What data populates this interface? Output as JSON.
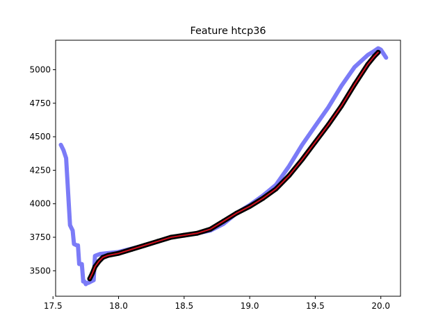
{
  "chart_data": {
    "type": "line",
    "title": "Feature htcp36",
    "xlabel": "",
    "ylabel": "",
    "xlim": [
      17.52,
      20.15
    ],
    "ylim": [
      3310,
      5220
    ],
    "xticks": [
      17.5,
      18.0,
      18.5,
      19.0,
      19.5,
      20.0
    ],
    "xtick_labels": [
      "17.5",
      "18.0",
      "18.5",
      "19.0",
      "19.5",
      "20.0"
    ],
    "yticks": [
      3500,
      3750,
      4000,
      4250,
      4500,
      4750,
      5000
    ],
    "ytick_labels": [
      "3500",
      "3750",
      "4000",
      "4250",
      "4500",
      "4750",
      "5000"
    ],
    "grid": false,
    "series": [
      {
        "color": "#7b7bf7",
        "style": "thick-line",
        "x": [
          17.56,
          17.58,
          17.6,
          17.63,
          17.65,
          17.66,
          17.68,
          17.69,
          17.7,
          17.7,
          17.72,
          17.73,
          17.73,
          17.74,
          17.75,
          17.76,
          17.77,
          17.79,
          17.81,
          17.82,
          17.83,
          17.86,
          17.9,
          17.95,
          18.0,
          18.1,
          18.2,
          18.3,
          18.4,
          18.5,
          18.6,
          18.7,
          18.8,
          18.9,
          19.0,
          19.1,
          19.2,
          19.3,
          19.4,
          19.5,
          19.6,
          19.7,
          19.8,
          19.9,
          19.95,
          19.98,
          20.0,
          20.02,
          20.04
        ],
        "y": [
          4440,
          4400,
          4340,
          3840,
          3800,
          3700,
          3690,
          3690,
          3550,
          3550,
          3550,
          3430,
          3420,
          3420,
          3400,
          3410,
          3410,
          3420,
          3430,
          3610,
          3615,
          3625,
          3630,
          3635,
          3640,
          3665,
          3690,
          3720,
          3750,
          3765,
          3780,
          3800,
          3850,
          3930,
          3990,
          4060,
          4140,
          4280,
          4440,
          4580,
          4720,
          4880,
          5020,
          5110,
          5140,
          5160,
          5150,
          5120,
          5090
        ]
      },
      {
        "color": "#000000",
        "style": "dotted-thick",
        "x": [
          17.78,
          17.8,
          17.82,
          17.85,
          17.88,
          17.92,
          18.0,
          18.1,
          18.2,
          18.3,
          18.4,
          18.5,
          18.6,
          18.7,
          18.8,
          18.9,
          19.0,
          19.1,
          19.2,
          19.3,
          19.4,
          19.5,
          19.6,
          19.7,
          19.8,
          19.9,
          19.95,
          19.98
        ],
        "y": [
          3440,
          3480,
          3530,
          3570,
          3600,
          3615,
          3630,
          3660,
          3690,
          3720,
          3750,
          3765,
          3780,
          3810,
          3870,
          3930,
          3980,
          4040,
          4110,
          4210,
          4330,
          4460,
          4590,
          4730,
          4890,
          5040,
          5100,
          5130
        ]
      },
      {
        "color": "#0000cc",
        "style": "thin-line",
        "x": [
          17.78,
          17.8,
          17.82,
          17.85,
          17.88,
          17.92,
          18.0,
          18.1,
          18.2,
          18.3,
          18.4,
          18.5,
          18.6,
          18.7,
          18.8,
          18.9,
          19.0,
          19.1,
          19.2,
          19.3,
          19.4,
          19.5,
          19.6,
          19.7,
          19.8,
          19.9,
          19.95,
          19.98
        ],
        "y": [
          3440,
          3480,
          3530,
          3570,
          3600,
          3615,
          3630,
          3660,
          3690,
          3720,
          3750,
          3765,
          3780,
          3810,
          3870,
          3930,
          3980,
          4040,
          4110,
          4210,
          4330,
          4460,
          4590,
          4730,
          4890,
          5040,
          5100,
          5130
        ]
      },
      {
        "color": "#dd1111",
        "style": "thin-line",
        "x": [
          17.78,
          17.8,
          17.82,
          17.85,
          17.88,
          17.92,
          18.0,
          18.1,
          18.2,
          18.3,
          18.4,
          18.5,
          18.6,
          18.7,
          18.8,
          18.9,
          19.0,
          19.1,
          19.2,
          19.3,
          19.4,
          19.5,
          19.6,
          19.7,
          19.8,
          19.9,
          19.95,
          19.98
        ],
        "y": [
          3440,
          3480,
          3530,
          3570,
          3600,
          3615,
          3630,
          3660,
          3690,
          3720,
          3750,
          3765,
          3780,
          3810,
          3870,
          3930,
          3980,
          4040,
          4110,
          4210,
          4330,
          4460,
          4590,
          4730,
          4890,
          5040,
          5100,
          5130
        ]
      }
    ]
  }
}
